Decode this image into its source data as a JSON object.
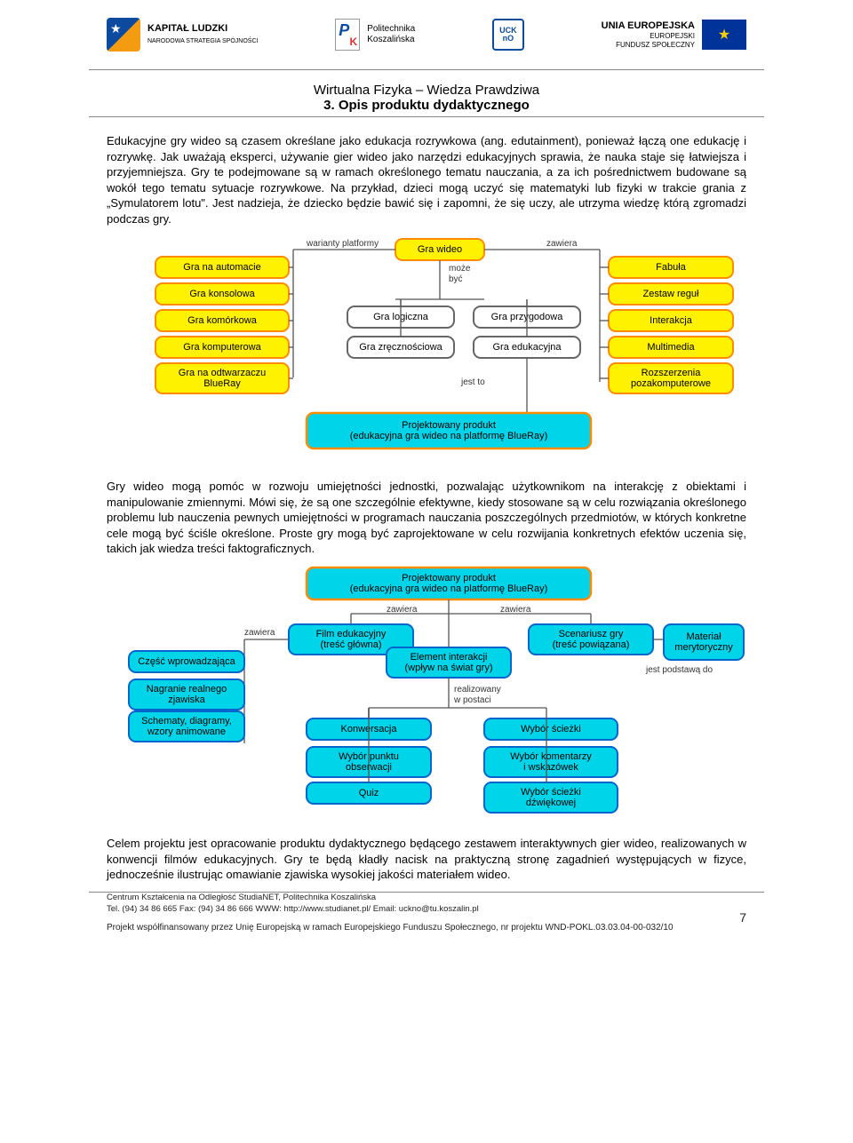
{
  "header": {
    "kl_bold": "KAPITAŁ LUDZKI",
    "kl_sub": "NARODOWA STRATEGIA SPÓJNOŚCI",
    "pk_line1": "Politechnika",
    "pk_line2": "Koszalińska",
    "uckno_top": "UCK",
    "uckno_bot": "nO",
    "eu_line1": "UNIA EUROPEJSKA",
    "eu_line2": "EUROPEJSKI",
    "eu_line3": "FUNDUSZ SPOŁECZNY"
  },
  "title": {
    "line1": "Wirtualna Fizyka – Wiedza Prawdziwa",
    "line2": "3. Opis produktu dydaktycznego"
  },
  "para1": "Edukacyjne gry wideo są czasem określane jako edukacja rozrywkowa (ang. edutainment), ponieważ łączą one edukację i rozrywkę. Jak uważają eksperci, używanie gier wideo jako narzędzi edukacyjnych sprawia, że nauka staje się łatwiejsza i przyjemniejsza. Gry te podejmowane są w ramach określonego tematu nauczania, a za ich pośrednictwem budowane są wokół tego tematu sytuacje rozrywkowe. Na przykład, dzieci mogą uczyć się matematyki lub fizyki w trakcie grania z „Symulatorem lotu\". Jest nadzieja, że dziecko będzie bawić się i zapomni, że się uczy, ale utrzyma wiedzę którą zgromadzi podczas gry.",
  "para2": "Gry wideo mogą pomóc w rozwoju umiejętności jednostki, pozwalając użytkownikom na interakcję z obiektami i manipulowanie zmiennymi. Mówi się, że są one szczególnie efektywne, kiedy stosowane są w celu rozwiązania określonego problemu lub nauczenia pewnych umiejętności w programach nauczania poszczególnych przedmiotów, w których konkretne cele mogą być ściśle określone. Proste gry mogą być zaprojektowane w celu rozwijania konkretnych efektów uczenia się, takich jak wiedza treści faktograficznych.",
  "para3": "Celem projektu jest opracowanie produktu dydaktycznego będącego zestawem interaktywnych gier wideo, realizowanych w konwencji filmów edukacyjnych. Gry te będą kładły nacisk na praktyczną stronę zagadnień występujących w fizyce, jednocześnie ilustrując omawianie zjawiska wysokiej jakości materiałem wideo.",
  "diagram1": {
    "type": "network",
    "edge_labels": {
      "warianty": "warianty platformy",
      "zawiera": "zawiera",
      "moze1": "może",
      "moze2": "być",
      "jestto": "jest to"
    },
    "nodes": {
      "gw": "Gra wideo",
      "platforms": [
        "Gra na automacie",
        "Gra konsolowa",
        "Gra komórkowa",
        "Gra komputerowa",
        "Gra na odtwarzaczu\nBlueRay"
      ],
      "middle": [
        "Gra logiczna",
        "Gra zręcznościowa",
        "Gra przygodowa",
        "Gra edukacyjna"
      ],
      "right": [
        "Fabuła",
        "Zestaw reguł",
        "Interakcja",
        "Multimedia",
        "Rozszerzenia\npozakomputerowe"
      ],
      "product": "Projektowany produkt\n(edukacyjna gra wideo na platformę BlueRay)"
    },
    "colors": {
      "yellow_fill": "#fff200",
      "yellow_stroke": "#ff8c00",
      "white_fill": "#ffffff",
      "white_stroke": "#666666",
      "cyan_fill": "#00d4e8",
      "cyan_stroke": "#ff8c00",
      "edge": "#555555",
      "bg": "#ffffff",
      "label_fontsize": 11
    }
  },
  "diagram2": {
    "type": "network",
    "edge_labels": {
      "zawiera": "zawiera",
      "realiz1": "realizowany",
      "realiz2": "w postaci",
      "jest": "jest podstawą do"
    },
    "product": "Projektowany produkt\n(edukacyjna gra wideo na platformę BlueRay)",
    "film": "Film edukacyjny\n(treść główna)",
    "scen": "Scenariusz gry\n(treść powiązana)",
    "elem": "Element interakcji\n(wpływ na świat gry)",
    "mat": "Materiał\nmerytoryczny",
    "left": [
      "Część wprowadzająca",
      "Nagranie realnego\nzjawiska",
      "Schematy, diagramy,\nwzory animowane"
    ],
    "bottomL": [
      "Konwersacja",
      "Wybór punktu\nobserwacji",
      "Quiz"
    ],
    "bottomR": [
      "Wybór ścieżki",
      "Wybór komentarzy\ni wskazówek",
      "Wybór ścieżki\ndźwiękowej"
    ],
    "colors": {
      "blue_stroke": "#0066cc",
      "cyan_fill": "#00d4e8",
      "orange_stroke": "#ff8c00",
      "edge": "#555555"
    }
  },
  "footer": {
    "l1": "Centrum Kształcenia na Odległość StudiaNET,  Politechnika Koszalińska",
    "l2": "Tel. (94) 34 86 665    Fax: (94) 34 86 666    WWW: http://www.studianet.pl/    Email: uckno@tu.koszalin.pl",
    "proj": "Projekt współfinansowany przez Unię Europejską w ramach Europejskiego Funduszu Społecznego, nr projektu WND-POKL.03.03.04-00-032/10",
    "page": "7"
  }
}
